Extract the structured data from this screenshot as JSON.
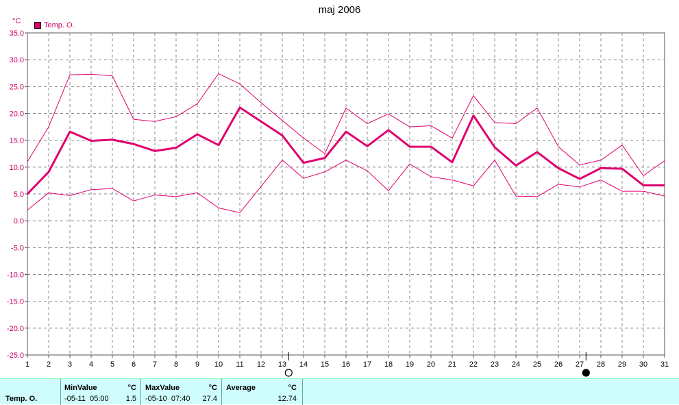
{
  "chart_data": {
    "type": "line",
    "title": "maj 2006",
    "ylabel": "°C",
    "ylim": [
      -25,
      35
    ],
    "yticks": [
      "35.0",
      "30.0",
      "25.0",
      "20.0",
      "15.0",
      "10.0",
      "5.0",
      "0.0",
      "-5.0",
      "-10.0",
      "-15.0",
      "-20.0",
      "-25.0"
    ],
    "x": [
      1,
      2,
      3,
      4,
      5,
      6,
      7,
      8,
      9,
      10,
      11,
      12,
      13,
      14,
      15,
      16,
      17,
      18,
      19,
      20,
      21,
      22,
      23,
      24,
      25,
      26,
      27,
      28,
      29,
      30,
      31
    ],
    "legend": "Temp. O.",
    "grid": true,
    "series": [
      {
        "role": "max",
        "color": "#e0006e",
        "values": [
          11.0,
          17.5,
          27.2,
          27.3,
          27.0,
          18.9,
          18.5,
          19.4,
          21.8,
          27.4,
          25.5,
          22.0,
          18.7,
          15.4,
          12.5,
          21.0,
          18.1,
          19.9,
          17.5,
          17.7,
          15.4,
          23.3,
          18.3,
          18.1,
          21.0,
          13.8,
          10.4,
          11.3,
          14.1,
          8.4,
          11.2
        ]
      },
      {
        "role": "avg",
        "color": "#e0006e",
        "values": [
          5.0,
          9.1,
          16.6,
          14.9,
          15.1,
          14.3,
          13.0,
          13.6,
          16.1,
          14.1,
          21.1,
          18.5,
          15.9,
          10.8,
          11.7,
          16.6,
          13.9,
          16.9,
          13.8,
          13.8,
          10.9,
          19.6,
          13.7,
          10.3,
          12.8,
          9.8,
          7.8,
          9.8,
          9.7,
          6.6,
          6.6
        ]
      },
      {
        "role": "min",
        "color": "#e0006e",
        "values": [
          2.0,
          5.2,
          4.7,
          5.8,
          6.0,
          3.7,
          4.8,
          4.5,
          5.2,
          2.4,
          1.5,
          6.4,
          11.3,
          7.9,
          9.1,
          11.3,
          9.3,
          5.6,
          10.6,
          8.2,
          7.6,
          6.5,
          11.3,
          4.6,
          4.5,
          6.8,
          6.3,
          7.6,
          5.5,
          5.5,
          4.6
        ]
      }
    ],
    "markers": [
      {
        "x": 13.3,
        "symbol": "open-circle"
      },
      {
        "x": 27.3,
        "symbol": "filled-circle"
      }
    ]
  },
  "unit_label": "°C",
  "legend": {
    "label": "Temp. O.",
    "color": "#e0006e"
  },
  "stats": {
    "row_label": "Temp. O.",
    "min": {
      "header": "MinValue",
      "unit": "°C",
      "time": "-05-11  05:00",
      "value": "1.5"
    },
    "max": {
      "header": "MaxValue",
      "unit": "°C",
      "time": "-05-10  07:40",
      "value": "27.4"
    },
    "avg": {
      "header": "Average",
      "unit": "°C",
      "value": "12.74"
    }
  }
}
